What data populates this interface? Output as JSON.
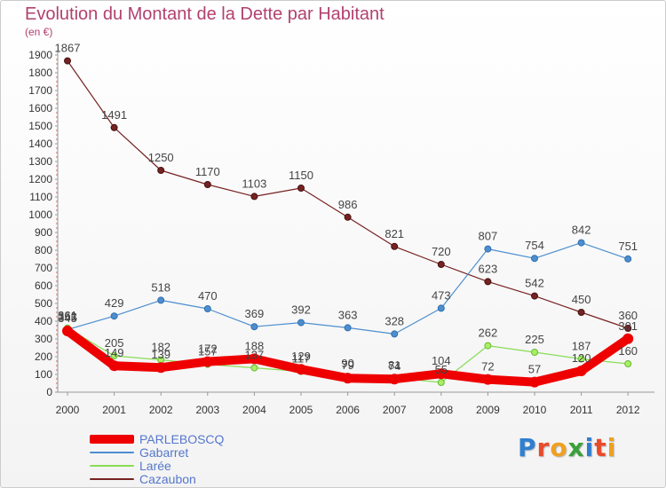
{
  "title": "Evolution du Montant de la Dette par Habitant",
  "subtitle": "(en €)",
  "logo": {
    "text": "Proxiti",
    "colors": [
      "#2f7fcf",
      "#e84a2a",
      "#f0a020",
      "#3aa03a",
      "#2f7fcf",
      "#e84a2a",
      "#f0a020"
    ]
  },
  "chart_data": {
    "type": "line",
    "title": "Evolution du Montant de la Dette par Habitant",
    "ylabel": "(en €)",
    "xlabel": "",
    "x": [
      "2000",
      "2001",
      "2002",
      "2003",
      "2004",
      "2005",
      "2006",
      "2007",
      "2008",
      "2009",
      "2010",
      "2011",
      "2012"
    ],
    "ylim": [
      0,
      1900
    ],
    "yticks": [
      0,
      100,
      200,
      300,
      400,
      500,
      600,
      700,
      800,
      900,
      1000,
      1100,
      1200,
      1300,
      1400,
      1500,
      1600,
      1700,
      1800,
      1900
    ],
    "grid": false,
    "legend_position": "bottom-left",
    "series": [
      {
        "name": "PARLEBOSCQ",
        "color": "#ee0000",
        "values": [
          345,
          149,
          139,
          172,
          188,
          129,
          79,
          74,
          104,
          72,
          57,
          120,
          301
        ]
      },
      {
        "name": "Gabarret",
        "color": "#4d8ecf",
        "values": [
          353,
          429,
          518,
          470,
          369,
          392,
          363,
          328,
          473,
          807,
          754,
          842,
          751
        ]
      },
      {
        "name": "Larée",
        "color": "#88dd55",
        "values": [
          361,
          205,
          182,
          157,
          137,
          117,
          90,
          81,
          55,
          262,
          225,
          187,
          160
        ]
      },
      {
        "name": "Cazaubon",
        "color": "#772222",
        "values": [
          1867,
          1491,
          1250,
          1170,
          1103,
          1150,
          986,
          821,
          720,
          623,
          542,
          450,
          360
        ]
      }
    ]
  }
}
